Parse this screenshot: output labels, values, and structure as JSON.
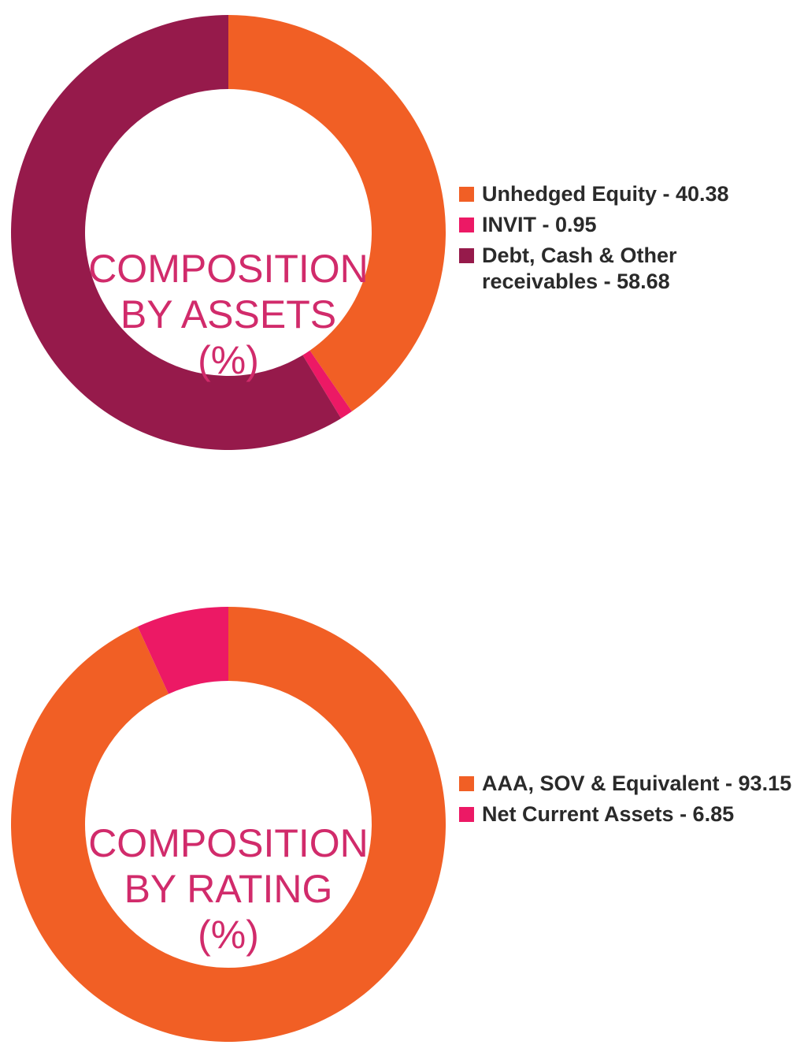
{
  "chart_data": [
    {
      "type": "pie",
      "donut": true,
      "center_label_lines": [
        "COMPOSITION",
        "BY ASSETS",
        "(%)"
      ],
      "legend_position": "right",
      "series": [
        {
          "name": "Unhedged Equity - 40.38",
          "value": 40.38,
          "color": "#f15f25"
        },
        {
          "name": "INVIT - 0.95",
          "value": 0.95,
          "color": "#ec1965"
        },
        {
          "name": "Debt, Cash & Other receivables - 58.68",
          "value": 58.68,
          "color": "#961a4b"
        }
      ]
    },
    {
      "type": "pie",
      "donut": true,
      "center_label_lines": [
        "COMPOSITION",
        "BY RATING",
        "(%)"
      ],
      "legend_position": "right",
      "series": [
        {
          "name": "AAA, SOV & Equivalent - 93.15",
          "value": 93.15,
          "color": "#f15f25"
        },
        {
          "name": "Net Current Assets - 6.85",
          "value": 6.85,
          "color": "#ec1965"
        }
      ]
    }
  ]
}
